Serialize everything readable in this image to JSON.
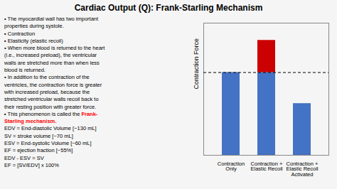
{
  "chart_data": {
    "type": "bar",
    "title": "Cardiac Output (Q): Frank-Starling Mechanism",
    "annotations": [
      "• The myocardial wall has two important",
      "properties during systole.",
      "▪ Contraction",
      "▪ Elasticity (elastic recoil)",
      "• When more blood is returned to the heart",
      "(i.e., increased preload), the ventricular",
      "walls are stretched more than when less",
      "blood is returned.",
      "• In addition to the contraction of the",
      "ventricles, the contraction force is greater",
      "with increased preload, because the",
      "stretched ventricular walls recoil back to",
      "their resting position with greater force.",
      [
        {
          "text": "▪ This phenomenon is called the "
        },
        {
          "text": "Frank-",
          "color": "red"
        }
      ],
      {
        "text": "Starling mechanism.",
        "color": "red"
      },
      "EDV = End-diastolic Volume [~130 mL]",
      "SV = stroke volume [~70 mL]",
      "ESV = End-systolic Volume [~60 mL]",
      "EF = ejection fraction [~55%]",
      "EDV - ESV = SV",
      "EF = [SV/EDV] x 100%"
    ],
    "categories": [
      "Contraction\nOnly",
      "Contraction +\nElastic Recoil",
      "Contraction +\nElastic Recoil\nActivated"
    ],
    "series": [
      {
        "color": "#4472c4",
        "values": [
          0.72,
          0.72,
          0.45
        ]
      },
      {
        "color": "#cc0000",
        "values": [
          null,
          0.28,
          null
        ]
      }
    ],
    "stacked": true,
    "ylabel": "Contraction Force",
    "ylim": [
      0,
      1.15
    ],
    "yticks": [],
    "tick_labels": "x",
    "reference_line": {
      "y": 0.72,
      "line_style": "dashed"
    }
  }
}
